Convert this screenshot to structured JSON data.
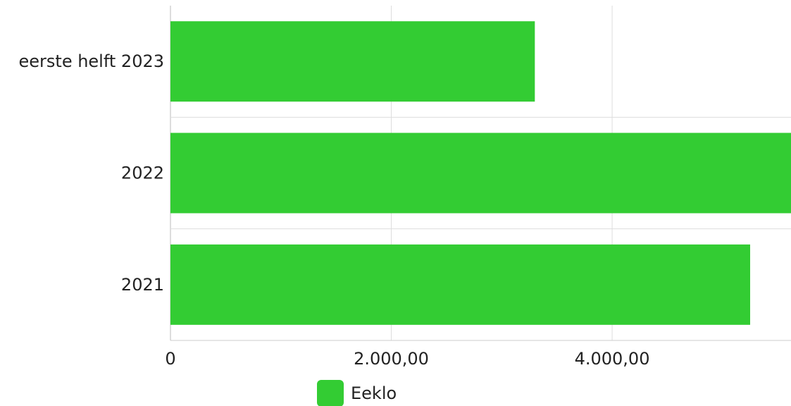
{
  "chart_data": {
    "type": "bar",
    "orientation": "horizontal",
    "categories": [
      "eerste helft 2023",
      "2022",
      "2021"
    ],
    "series": [
      {
        "name": "Eeklo",
        "color": "#33cc33",
        "values": [
          3300,
          5650,
          5250
        ]
      }
    ],
    "x_ticks": [
      0,
      2000,
      4000
    ],
    "x_tick_labels": [
      "0",
      "2.000,00",
      "4.000,00"
    ],
    "xlim": [
      0,
      5620
    ],
    "grid": true,
    "legend": "bottom-center"
  }
}
